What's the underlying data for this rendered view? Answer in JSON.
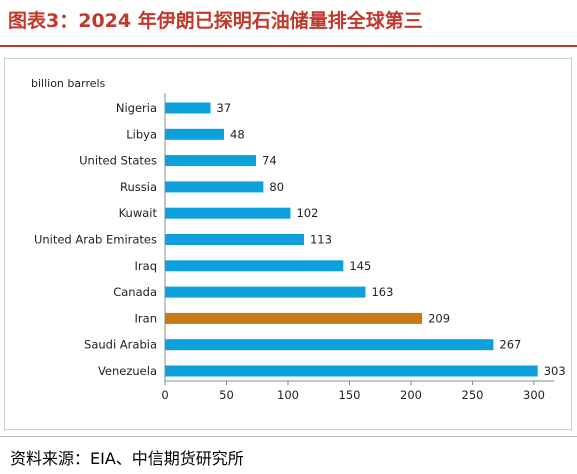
{
  "title": "图表3：2024 年伊朗已探明石油储量排全球第三",
  "source": "资料来源：EIA、中信期货研究所",
  "colors": {
    "title": "#c0392b",
    "bar": "#0ca0dc",
    "highlight": "#c77a14"
  },
  "chart_data": {
    "type": "bar",
    "orientation": "horizontal",
    "unit_label": "billion barrels",
    "categories": [
      "Nigeria",
      "Libya",
      "United States",
      "Russia",
      "Kuwait",
      "United Arab Emirates",
      "Iraq",
      "Canada",
      "Iran",
      "Saudi Arabia",
      "Venezuela"
    ],
    "values": [
      37,
      48,
      74,
      80,
      102,
      113,
      145,
      163,
      209,
      267,
      303
    ],
    "highlight": "Iran",
    "xlim": [
      0,
      300
    ],
    "xticks": [
      0,
      50,
      100,
      150,
      200,
      250,
      300
    ],
    "grid": false,
    "legend": "none"
  }
}
